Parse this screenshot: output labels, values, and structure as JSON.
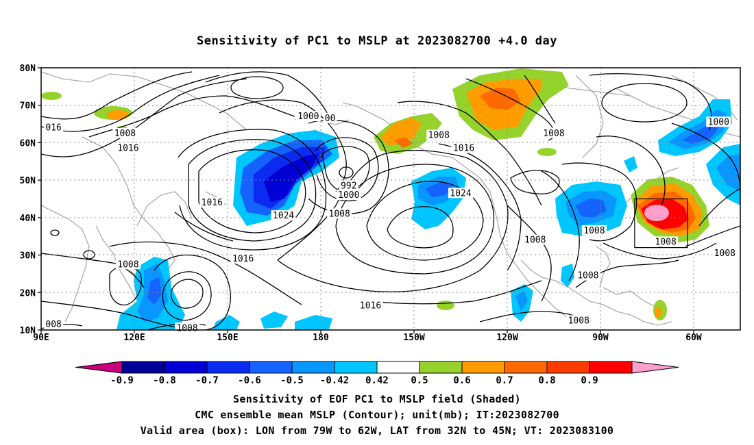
{
  "title": "Sensitivity of PC1 to MSLP at 2023082700 +4.0 day",
  "map": {
    "lat_labels": [
      "80N",
      "70N",
      "60N",
      "50N",
      "40N",
      "30N",
      "20N",
      "10N"
    ],
    "lon_labels": [
      "90E",
      "120E",
      "150E",
      "180",
      "150W",
      "120W",
      "90W",
      "60W"
    ],
    "lon_range": [
      90,
      315
    ],
    "lat_range": [
      10,
      80
    ],
    "contour_labels": [
      {
        "text": "016",
        "lon": 94,
        "lat": 64
      },
      {
        "text": "1008",
        "lon": 117,
        "lat": 62.5
      },
      {
        "text": "1016",
        "lon": 118,
        "lat": 58.5
      },
      {
        "text": "1000",
        "lon": 176,
        "lat": 67
      },
      {
        "text": "00",
        "lon": 183,
        "lat": 66.5
      },
      {
        "text": "992",
        "lon": 189,
        "lat": 48.5
      },
      {
        "text": "1000",
        "lon": 189,
        "lat": 46
      },
      {
        "text": "1008",
        "lon": 186,
        "lat": 41
      },
      {
        "text": "1024",
        "lon": 168,
        "lat": 40.5
      },
      {
        "text": "1016",
        "lon": 145,
        "lat": 44
      },
      {
        "text": "1016",
        "lon": 155,
        "lat": 29
      },
      {
        "text": "1008",
        "lon": 118,
        "lat": 27.5
      },
      {
        "text": "1008",
        "lon": 137,
        "lat": 10.5
      },
      {
        "text": "008",
        "lon": 94,
        "lat": 11.5
      },
      {
        "text": "1024",
        "lon": 225,
        "lat": 46.5
      },
      {
        "text": "1008",
        "lon": 218,
        "lat": 62
      },
      {
        "text": "1016",
        "lon": 226,
        "lat": 58.5
      },
      {
        "text": "1008",
        "lon": 255,
        "lat": 62.5
      },
      {
        "text": "1008",
        "lon": 249,
        "lat": 34
      },
      {
        "text": "1008",
        "lon": 268,
        "lat": 36.5
      },
      {
        "text": "1008",
        "lon": 266,
        "lat": 24.5
      },
      {
        "text": "1008",
        "lon": 263,
        "lat": 12.5
      },
      {
        "text": "1016",
        "lon": 196,
        "lat": 16.5
      },
      {
        "text": "1008",
        "lon": 291,
        "lat": 33.5
      },
      {
        "text": "1008",
        "lon": 310,
        "lat": 30.5
      },
      {
        "text": "1000",
        "lon": 308,
        "lat": 65.5
      }
    ],
    "valid_box": {
      "lon_min": 281,
      "lon_max": 298,
      "lat_min": 32,
      "lat_max": 45
    }
  },
  "colorbar": {
    "labels": [
      "-0.9",
      "-0.8",
      "-0.7",
      "-0.6",
      "-0.5",
      "-0.42",
      "0.42",
      "0.5",
      "0.6",
      "0.7",
      "0.8",
      "0.9"
    ],
    "colors": [
      "#c8007c",
      "#000096",
      "#0000d6",
      "#0a2cf0",
      "#1463ff",
      "#0a96ff",
      "#00c6ff",
      "#ffffff",
      "#96d22c",
      "#ff9c00",
      "#ff6a00",
      "#ff3c00",
      "#ff0000",
      "#ffa0cc"
    ]
  },
  "captions": [
    "Sensitivity of EOF PC1 to MSLP field (Shaded)",
    "CMC ensemble mean MSLP (Contour); unit(mb); IT:2023082700",
    "Valid area (box): LON from 79W to 62W, LAT from 32N to 45N; VT: 2023083100"
  ]
}
